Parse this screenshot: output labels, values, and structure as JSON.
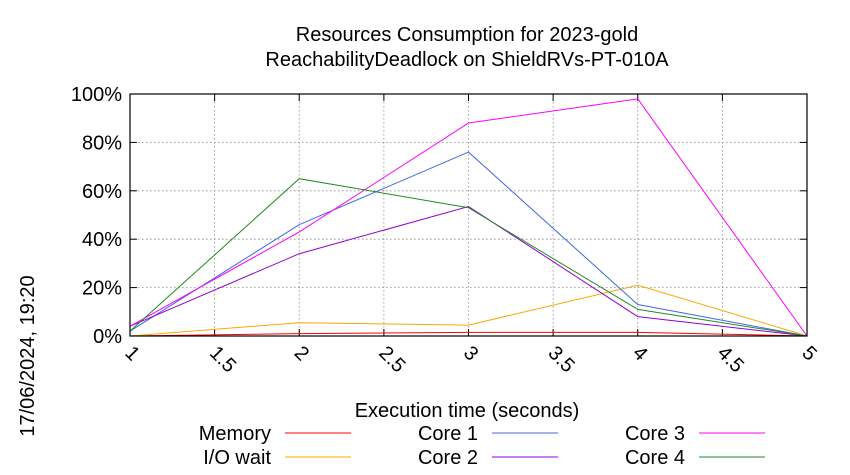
{
  "chart_data": {
    "type": "line",
    "title": "Resources Consumption for 2023-gold",
    "subtitle": "ReachabilityDeadlock on ShieldRVs-PT-010A",
    "xlabel": "Execution time (seconds)",
    "ylabel": "",
    "timestamp": "17/06/2024, 19:20",
    "xlim": [
      1,
      5
    ],
    "ylim": [
      0,
      100
    ],
    "x_ticks": [
      "1",
      "1.5",
      "2",
      "2.5",
      "3",
      "3.5",
      "4",
      "4.5",
      "5"
    ],
    "y_ticks": [
      "0%",
      "20%",
      "40%",
      "60%",
      "80%",
      "100%"
    ],
    "grid": true,
    "legend_position": "bottom",
    "x": [
      1,
      2,
      3,
      4,
      5
    ],
    "series": [
      {
        "name": "Memory",
        "color": "#ff0000",
        "values": [
          0,
          1,
          1.5,
          1.5,
          0
        ]
      },
      {
        "name": "I/O wait",
        "color": "#ffa500",
        "values": [
          0,
          5.5,
          4.5,
          21,
          0
        ]
      },
      {
        "name": "Core 1",
        "color": "#4169e1",
        "values": [
          2,
          46,
          76,
          13,
          0
        ]
      },
      {
        "name": "Core 2",
        "color": "#9400d3",
        "values": [
          4,
          34,
          53.5,
          8,
          0
        ]
      },
      {
        "name": "Core 3",
        "color": "#ff00ff",
        "values": [
          4,
          43,
          88,
          98,
          0
        ]
      },
      {
        "name": "Core 4",
        "color": "#228b22",
        "values": [
          2,
          65,
          53,
          11,
          0
        ]
      }
    ]
  }
}
